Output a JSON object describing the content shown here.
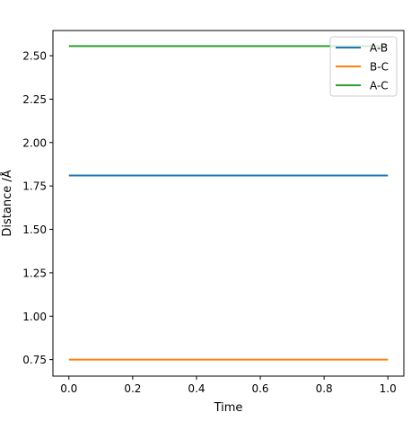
{
  "chart_data": {
    "type": "line",
    "title": "",
    "xlabel": "Time",
    "ylabel": "Distance /Å",
    "xlim": [
      -0.05,
      1.05
    ],
    "ylim": [
      0.655,
      2.645
    ],
    "x_ticks": [
      0.0,
      0.2,
      0.4,
      0.6,
      0.8,
      1.0
    ],
    "x_tick_labels": [
      "0.0",
      "0.2",
      "0.4",
      "0.6",
      "0.8",
      "1.0"
    ],
    "y_ticks": [
      0.75,
      1.0,
      1.25,
      1.5,
      1.75,
      2.0,
      2.25,
      2.5
    ],
    "y_tick_labels": [
      "0.75",
      "1.00",
      "1.25",
      "1.50",
      "1.75",
      "2.00",
      "2.25",
      "2.50"
    ],
    "x": [
      0.0,
      1.0
    ],
    "series": [
      {
        "name": "A-B",
        "color": "#1f77b4",
        "values": [
          1.81,
          1.81
        ]
      },
      {
        "name": "B-C",
        "color": "#ff7f0e",
        "values": [
          0.75,
          0.75
        ]
      },
      {
        "name": "A-C",
        "color": "#2ca02c",
        "values": [
          2.555,
          2.555
        ]
      }
    ],
    "grid": false,
    "legend_position": "top-right"
  }
}
